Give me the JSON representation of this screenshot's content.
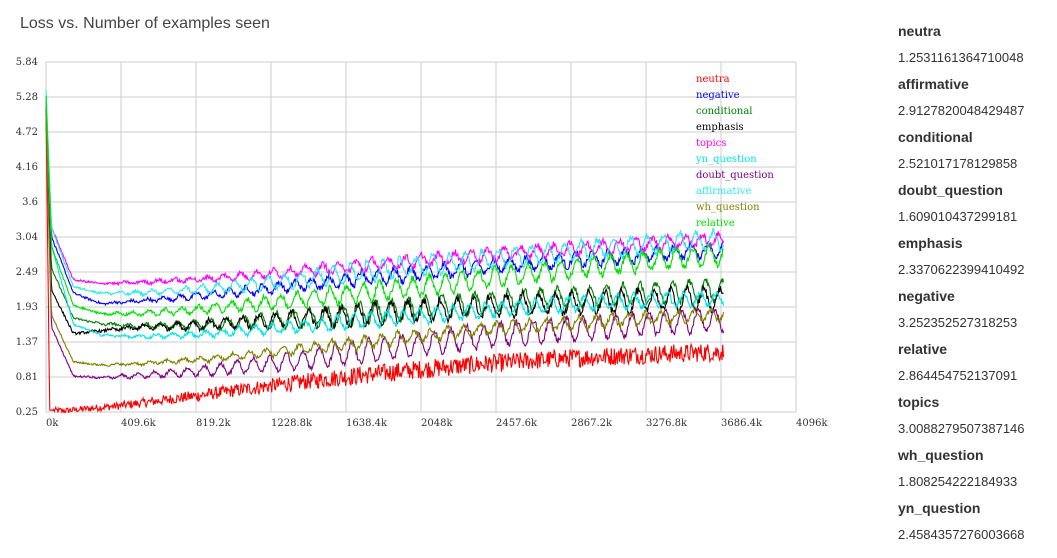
{
  "page": {
    "title": "Loss vs. Number of examples seen"
  },
  "metrics": [
    {
      "name": "neutra",
      "value": "1.2531161364710048"
    },
    {
      "name": "affirmative",
      "value": "2.9127820048429487"
    },
    {
      "name": "conditional",
      "value": "2.521017178129858"
    },
    {
      "name": "doubt_question",
      "value": "1.609010437299181"
    },
    {
      "name": "emphasis",
      "value": "2.3370622399410492"
    },
    {
      "name": "negative",
      "value": "3.252352527318253"
    },
    {
      "name": "relative",
      "value": "2.864454752137091"
    },
    {
      "name": "topics",
      "value": "3.0088279507387146"
    },
    {
      "name": "wh_question",
      "value": "1.808254222184933"
    },
    {
      "name": "yn_question",
      "value": "2.4584357276003668"
    }
  ],
  "chart_data": {
    "type": "line",
    "title": "Loss vs. Number of examples seen",
    "xlabel": "",
    "ylabel": "",
    "x_ticks": [
      "0k",
      "409.6k",
      "819.2k",
      "1228.8k",
      "1638.4k",
      "2048k",
      "2457.6k",
      "2867.2k",
      "3276.8k",
      "3686.4k",
      "4096k"
    ],
    "y_ticks": [
      "0.25",
      "0.81",
      "1.37",
      "1.93",
      "2.49",
      "3.04",
      "3.6",
      "4.16",
      "4.72",
      "5.28",
      "5.84"
    ],
    "xlim": [
      0,
      4096000
    ],
    "ylim": [
      0.25,
      5.84
    ],
    "grid": true,
    "legend_position": "top-right",
    "x_end": 3700000,
    "series": [
      {
        "name": "neutra",
        "color": "#ff0000",
        "x": [
          0,
          20000,
          100000,
          400000,
          800000,
          1200000,
          1600000,
          2000000,
          2400000,
          2800000,
          3200000,
          3700000
        ],
        "y": [
          5.1,
          0.28,
          0.27,
          0.35,
          0.5,
          0.66,
          0.8,
          0.92,
          1.02,
          1.1,
          1.16,
          1.21
        ],
        "noise": 0.1,
        "osc": 0.0
      },
      {
        "name": "negative",
        "color": "#0000ff",
        "x": [
          0,
          30000,
          150000,
          300000,
          500000,
          900000,
          1300000,
          1700000,
          2100000,
          2500000,
          3000000,
          3500000,
          3700000
        ],
        "y": [
          5.2,
          3.05,
          2.15,
          1.98,
          2.02,
          2.12,
          2.25,
          2.38,
          2.48,
          2.6,
          2.7,
          2.82,
          2.85
        ],
        "noise": 0.035,
        "osc": 0.12
      },
      {
        "name": "conditional",
        "color": "#008000",
        "x": [
          0,
          30000,
          150000,
          300000,
          500000,
          900000,
          1300000,
          1700000,
          2100000,
          2500000,
          3000000,
          3500000,
          3700000
        ],
        "y": [
          5.1,
          2.55,
          1.75,
          1.66,
          1.62,
          1.65,
          1.72,
          1.82,
          1.92,
          2.02,
          2.1,
          2.18,
          2.2
        ],
        "noise": 0.035,
        "osc": 0.18
      },
      {
        "name": "emphasis",
        "color": "#000000",
        "x": [
          0,
          30000,
          150000,
          300000,
          500000,
          900000,
          1300000,
          1700000,
          2100000,
          2500000,
          3000000,
          3500000,
          3700000
        ],
        "y": [
          5.0,
          2.2,
          1.5,
          1.55,
          1.6,
          1.65,
          1.72,
          1.8,
          1.88,
          1.95,
          2.0,
          2.05,
          2.05
        ],
        "noise": 0.04,
        "osc": 0.18
      },
      {
        "name": "topics",
        "color": "#ff00ff",
        "x": [
          0,
          30000,
          150000,
          300000,
          500000,
          900000,
          1300000,
          1700000,
          2100000,
          2500000,
          3000000,
          3500000,
          3700000
        ],
        "y": [
          5.2,
          3.2,
          2.36,
          2.3,
          2.32,
          2.38,
          2.48,
          2.58,
          2.68,
          2.78,
          2.88,
          2.98,
          3.0
        ],
        "noise": 0.035,
        "osc": 0.1
      },
      {
        "name": "yn_question",
        "color": "#00e5e5",
        "x": [
          0,
          30000,
          150000,
          300000,
          500000,
          900000,
          1300000,
          1700000,
          2100000,
          2500000,
          3000000,
          3500000,
          3700000
        ],
        "y": [
          5.3,
          2.9,
          1.65,
          1.48,
          1.45,
          1.5,
          1.6,
          1.7,
          1.8,
          1.9,
          2.0,
          2.05,
          2.06
        ],
        "noise": 0.03,
        "osc": 0.12
      },
      {
        "name": "doubt_question",
        "color": "#800080",
        "x": [
          0,
          30000,
          150000,
          300000,
          500000,
          900000,
          1300000,
          1700000,
          2100000,
          2500000,
          3000000,
          3500000,
          3700000
        ],
        "y": [
          5.0,
          1.6,
          0.82,
          0.8,
          0.83,
          0.92,
          1.05,
          1.2,
          1.35,
          1.5,
          1.6,
          1.7,
          1.72
        ],
        "noise": 0.03,
        "osc": 0.2
      },
      {
        "name": "affirmative",
        "color": "#33e6e6",
        "x": [
          0,
          30000,
          150000,
          300000,
          500000,
          900000,
          1300000,
          1700000,
          2100000,
          2500000,
          3000000,
          3500000,
          3700000
        ],
        "y": [
          5.4,
          3.2,
          2.25,
          2.15,
          2.15,
          2.22,
          2.34,
          2.48,
          2.6,
          2.72,
          2.85,
          2.97,
          3.0
        ],
        "noise": 0.035,
        "osc": 0.16
      },
      {
        "name": "wh_question",
        "color": "#808000",
        "x": [
          0,
          30000,
          150000,
          300000,
          500000,
          900000,
          1300000,
          1700000,
          2100000,
          2500000,
          3000000,
          3500000,
          3700000
        ],
        "y": [
          5.0,
          1.8,
          1.05,
          1.0,
          1.02,
          1.1,
          1.22,
          1.35,
          1.48,
          1.6,
          1.7,
          1.78,
          1.8
        ],
        "noise": 0.03,
        "osc": 0.1
      },
      {
        "name": "relative",
        "color": "#00e000",
        "x": [
          0,
          30000,
          150000,
          300000,
          500000,
          900000,
          1300000,
          1700000,
          2100000,
          2500000,
          3000000,
          3500000,
          3700000
        ],
        "y": [
          5.3,
          2.9,
          1.95,
          1.82,
          1.82,
          1.9,
          2.02,
          2.15,
          2.28,
          2.42,
          2.58,
          2.72,
          2.75
        ],
        "noise": 0.035,
        "osc": 0.16
      }
    ]
  }
}
